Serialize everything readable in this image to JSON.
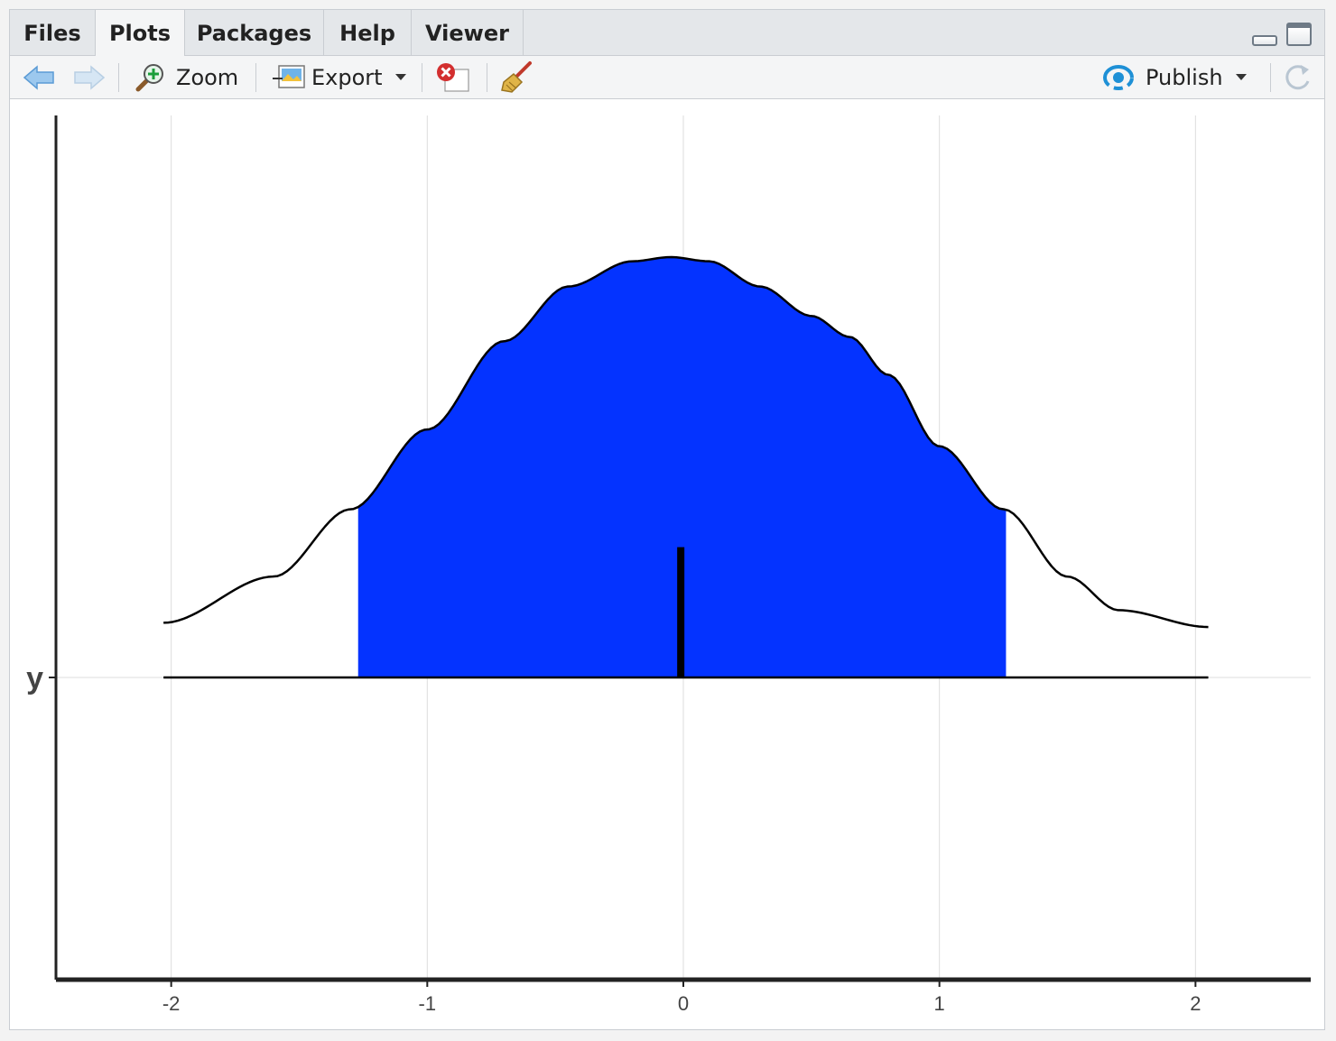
{
  "tabs": [
    {
      "label": "Files",
      "active": false
    },
    {
      "label": "Plots",
      "active": true
    },
    {
      "label": "Packages",
      "active": false
    },
    {
      "label": "Help",
      "active": false
    },
    {
      "label": "Viewer",
      "active": false
    }
  ],
  "toolbar": {
    "back_icon": "arrow-left-icon",
    "forward_icon": "arrow-right-icon",
    "zoom_label": "Zoom",
    "export_label": "Export",
    "remove_icon": "remove-plot-icon",
    "clear_icon": "broom-icon",
    "publish_label": "Publish",
    "refresh_icon": "refresh-icon"
  },
  "colors": {
    "fill": "#0433ff",
    "curve": "#000000",
    "grid": "#dddddd",
    "axis": "#222222",
    "tab_bg": "#e4e7ea",
    "publish_icon": "#1e90d6"
  },
  "chart_data": {
    "type": "area",
    "subtype": "density-halfeye",
    "y_category": "y",
    "xlim": [
      -2.45,
      2.45
    ],
    "x_ticks": [
      -2,
      -1,
      0,
      1,
      2
    ],
    "x_tick_labels": [
      "-2",
      "-1",
      "0",
      "1",
      "2"
    ],
    "density": {
      "x": [
        -2.03,
        -1.6,
        -1.3,
        -1.0,
        -0.7,
        -0.45,
        -0.2,
        -0.05,
        0.1,
        0.3,
        0.5,
        0.65,
        0.8,
        1.0,
        1.25,
        1.5,
        1.7,
        2.05
      ],
      "y": [
        0.13,
        0.24,
        0.4,
        0.59,
        0.8,
        0.93,
        0.99,
        1.0,
        0.99,
        0.93,
        0.86,
        0.81,
        0.72,
        0.55,
        0.4,
        0.24,
        0.16,
        0.12
      ]
    },
    "interval": {
      "lower": -1.27,
      "upper": 1.26
    },
    "point_estimate": -0.01,
    "point_height": 0.31,
    "grid": true
  }
}
